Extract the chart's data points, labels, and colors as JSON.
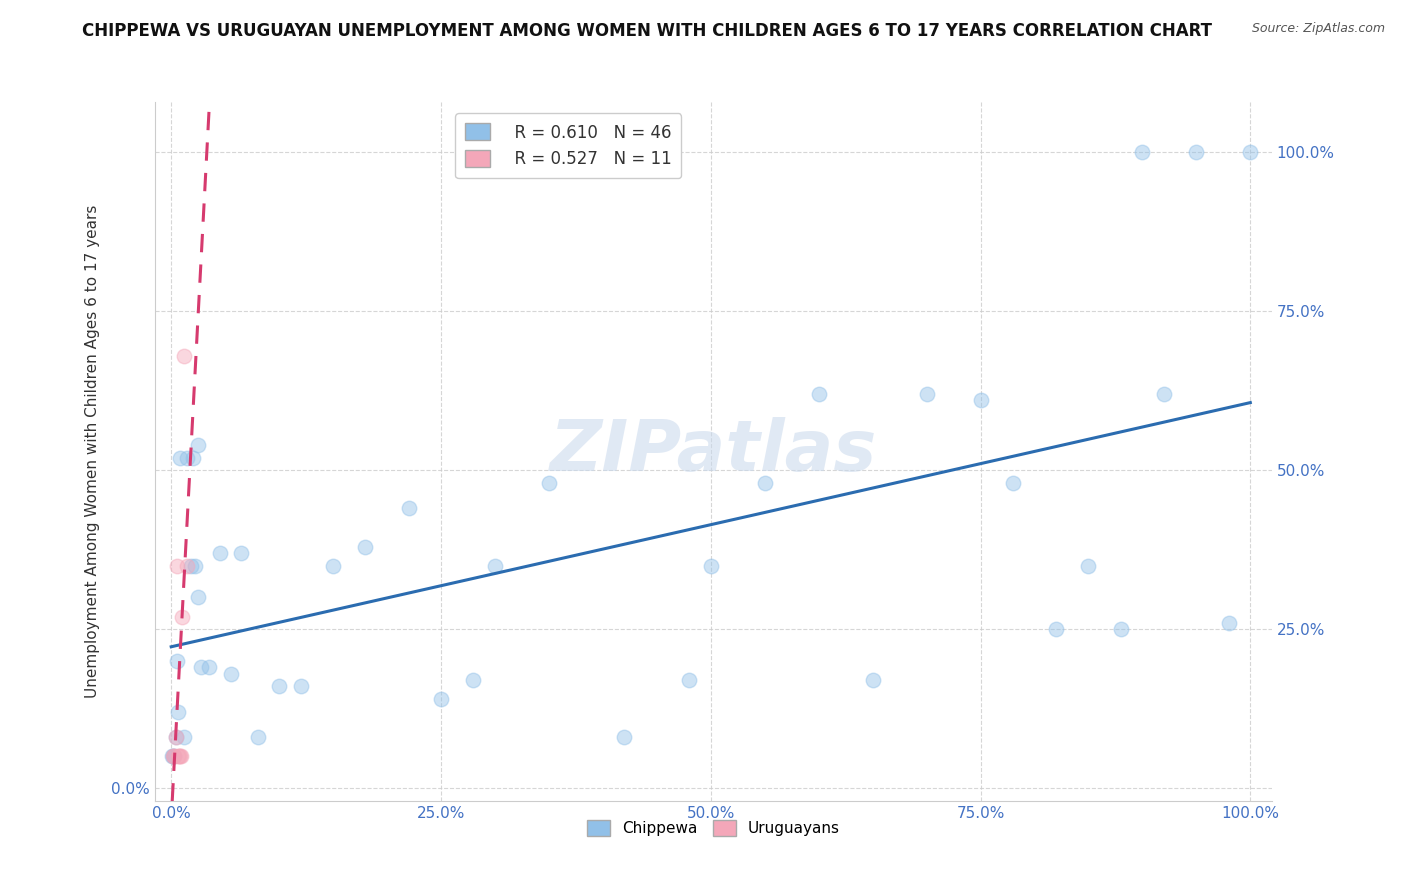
{
  "title": "CHIPPEWA VS URUGUAYAN UNEMPLOYMENT AMONG WOMEN WITH CHILDREN AGES 6 TO 17 YEARS CORRELATION CHART",
  "source": "Source: ZipAtlas.com",
  "ylabel": "Unemployment Among Women with Children Ages 6 to 17 years",
  "watermark": "ZIPatlas",
  "chippewa_R": 0.61,
  "chippewa_N": 46,
  "uruguayan_R": 0.527,
  "uruguayan_N": 11,
  "chippewa_color": "#91c0e8",
  "chippewa_line_color": "#2b6cb0",
  "uruguayan_color": "#f4a7b9",
  "uruguayan_line_color": "#d63a6e",
  "background_color": "#ffffff",
  "chippewa_x": [
    0.008,
    0.015,
    0.02,
    0.025,
    0.018,
    0.005,
    0.003,
    0.001,
    0.002,
    0.004,
    0.006,
    0.012,
    0.022,
    0.025,
    0.028,
    0.035,
    0.045,
    0.055,
    0.065,
    0.08,
    0.1,
    0.12,
    0.15,
    0.18,
    0.22,
    0.25,
    0.28,
    0.3,
    0.35,
    0.42,
    0.48,
    0.5,
    0.55,
    0.6,
    0.65,
    0.7,
    0.75,
    0.78,
    0.82,
    0.85,
    0.88,
    0.9,
    0.92,
    0.95,
    0.98,
    1.0
  ],
  "chippewa_y": [
    0.52,
    0.52,
    0.52,
    0.54,
    0.35,
    0.2,
    0.05,
    0.05,
    0.05,
    0.08,
    0.12,
    0.08,
    0.35,
    0.3,
    0.19,
    0.19,
    0.37,
    0.18,
    0.37,
    0.08,
    0.16,
    0.16,
    0.35,
    0.38,
    0.44,
    0.14,
    0.17,
    0.35,
    0.48,
    0.08,
    0.17,
    0.35,
    0.48,
    0.62,
    0.17,
    0.62,
    0.61,
    0.48,
    0.25,
    0.35,
    0.25,
    1.0,
    0.62,
    1.0,
    0.26,
    1.0
  ],
  "uruguayan_x": [
    0.002,
    0.003,
    0.004,
    0.005,
    0.006,
    0.007,
    0.008,
    0.009,
    0.01,
    0.012,
    0.015
  ],
  "uruguayan_y": [
    0.05,
    0.05,
    0.08,
    0.35,
    0.05,
    0.05,
    0.05,
    0.05,
    0.27,
    0.68,
    0.35
  ],
  "xticks": [
    0.0,
    0.25,
    0.5,
    0.75,
    1.0
  ],
  "yticks": [
    0.0,
    0.25,
    0.5,
    0.75,
    1.0
  ],
  "xticklabels": [
    "0.0%",
    "25.0%",
    "50.0%",
    "75.0%",
    "100.0%"
  ],
  "title_fontsize": 12,
  "label_fontsize": 11,
  "tick_fontsize": 11,
  "legend_fontsize": 12,
  "marker_size": 110,
  "marker_alpha": 0.45,
  "line_width": 2.2
}
